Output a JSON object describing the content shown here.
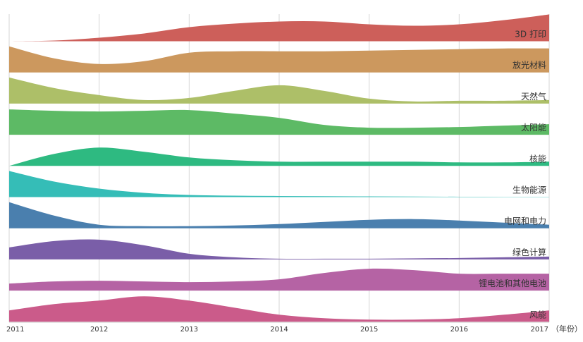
{
  "chart_data": {
    "type": "area",
    "subtype": "ridgeline",
    "title": "",
    "xlabel": "（年份）",
    "ylabel": "",
    "x": [
      2011,
      2011.5,
      2012,
      2012.5,
      2013,
      2013.5,
      2014,
      2014.5,
      2015,
      2015.5,
      2016,
      2016.5,
      2017
    ],
    "x_ticks": [
      "2011",
      "2012",
      "2013",
      "2014",
      "2015",
      "2016",
      "2017"
    ],
    "xlim": [
      2011,
      2017
    ],
    "ylim_per_band": [
      0,
      40
    ],
    "grid": "vertical",
    "series": [
      {
        "name": "3D 打印",
        "color": "#cd5f5a",
        "values": [
          0,
          1,
          5,
          11,
          20,
          25,
          28,
          28,
          24,
          22,
          24,
          30,
          38
        ]
      },
      {
        "name": "放光材料",
        "color": "#cc985e",
        "values": [
          37,
          20,
          12,
          16,
          28,
          30,
          30,
          30,
          31,
          32,
          33,
          34,
          34
        ]
      },
      {
        "name": "天然气",
        "color": "#adbf68",
        "values": [
          37,
          22,
          12,
          5,
          8,
          18,
          26,
          18,
          7,
          3,
          4,
          4,
          5
        ]
      },
      {
        "name": "太阳能",
        "color": "#5dba65",
        "values": [
          36,
          34,
          33,
          34,
          35,
          30,
          24,
          14,
          10,
          10,
          11,
          13,
          15
        ]
      },
      {
        "name": "核能",
        "color": "#2eba81",
        "values": [
          0,
          17,
          26,
          20,
          12,
          8,
          6,
          6,
          6,
          6,
          5,
          5,
          6
        ]
      },
      {
        "name": "生物能源",
        "color": "#35bdb7",
        "values": [
          37,
          22,
          12,
          6,
          3,
          2,
          1.5,
          1.2,
          1,
          0.8,
          0.5,
          0.4,
          0.3
        ]
      },
      {
        "name": "电网和电力",
        "color": "#4a7fae",
        "values": [
          37,
          18,
          5,
          3,
          3,
          4,
          6,
          9,
          12,
          13,
          11,
          8,
          5
        ]
      },
      {
        "name": "绿色计算",
        "color": "#7a5ea8",
        "values": [
          17,
          26,
          28,
          20,
          8,
          3,
          1,
          1,
          1,
          1.5,
          2,
          3,
          4
        ]
      },
      {
        "name": "锂电池和其他电池",
        "color": "#b563a4",
        "values": [
          10,
          13,
          14,
          13,
          12,
          13,
          16,
          25,
          31,
          29,
          24,
          24,
          24
        ]
      },
      {
        "name": "风能",
        "color": "#cb5b8a",
        "values": [
          16,
          25,
          30,
          36,
          30,
          20,
          10,
          5,
          3,
          3,
          5,
          10,
          16
        ]
      }
    ]
  }
}
